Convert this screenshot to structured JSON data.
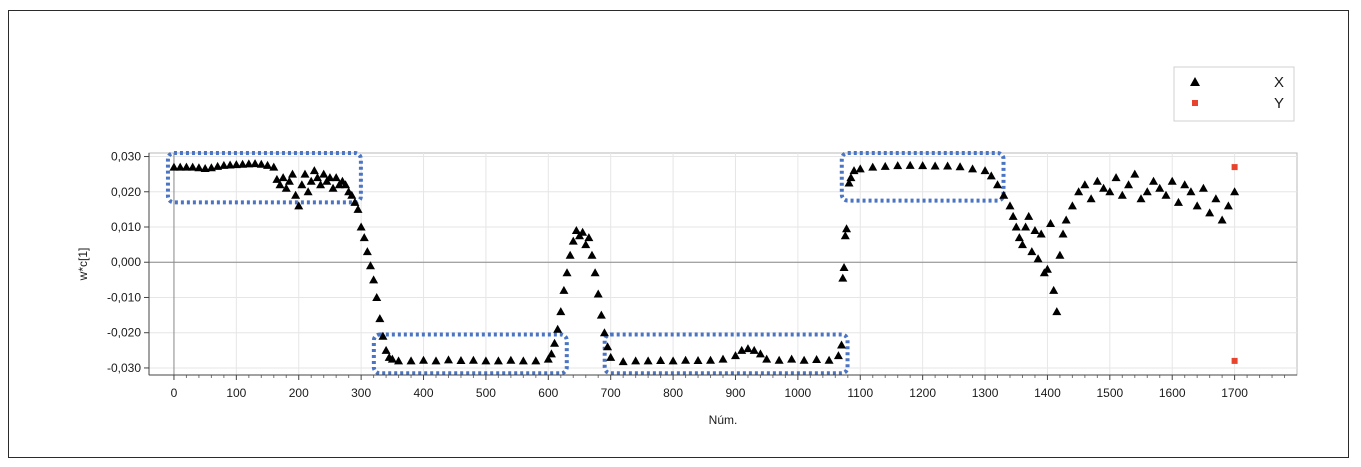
{
  "chart_data": {
    "type": "scatter",
    "xlabel": "Núm.",
    "ylabel": "w*c[1]",
    "xlim": [
      -40,
      1800
    ],
    "ylim": [
      -0.032,
      0.031
    ],
    "x_ticks": [
      "0",
      "100",
      "200",
      "300",
      "400",
      "500",
      "600",
      "700",
      "800",
      "900",
      "1000",
      "1100",
      "1200",
      "1300",
      "1400",
      "1500",
      "1600",
      "1700"
    ],
    "y_ticks": [
      "0,030",
      "0,020",
      "0,010",
      "0,000",
      "-0,010",
      "-0,020",
      "-0,030"
    ],
    "grid": true,
    "legend": {
      "placement": "top-right",
      "entries": [
        {
          "label": "X",
          "marker": "triangle",
          "color": "#000000"
        },
        {
          "label": "Y",
          "marker": "square",
          "color": "#e8432c"
        }
      ]
    },
    "series": [
      {
        "name": "X",
        "marker": "triangle",
        "color": "#000000",
        "points": [
          [
            0,
            0.027
          ],
          [
            10,
            0.027
          ],
          [
            20,
            0.027
          ],
          [
            30,
            0.027
          ],
          [
            40,
            0.0268
          ],
          [
            50,
            0.0266
          ],
          [
            60,
            0.0268
          ],
          [
            70,
            0.0272
          ],
          [
            80,
            0.0275
          ],
          [
            90,
            0.0276
          ],
          [
            100,
            0.0277
          ],
          [
            110,
            0.0278
          ],
          [
            120,
            0.0279
          ],
          [
            130,
            0.028
          ],
          [
            140,
            0.0278
          ],
          [
            150,
            0.0275
          ],
          [
            160,
            0.027
          ],
          [
            165,
            0.0235
          ],
          [
            170,
            0.022
          ],
          [
            175,
            0.024
          ],
          [
            180,
            0.021
          ],
          [
            185,
            0.023
          ],
          [
            190,
            0.025
          ],
          [
            195,
            0.019
          ],
          [
            200,
            0.016
          ],
          [
            205,
            0.022
          ],
          [
            210,
            0.025
          ],
          [
            215,
            0.02
          ],
          [
            220,
            0.023
          ],
          [
            225,
            0.026
          ],
          [
            230,
            0.024
          ],
          [
            235,
            0.022
          ],
          [
            240,
            0.025
          ],
          [
            245,
            0.023
          ],
          [
            250,
            0.024
          ],
          [
            255,
            0.021
          ],
          [
            260,
            0.024
          ],
          [
            265,
            0.022
          ],
          [
            270,
            0.023
          ],
          [
            275,
            0.022
          ],
          [
            280,
            0.02
          ],
          [
            285,
            0.019
          ],
          [
            290,
            0.017
          ],
          [
            295,
            0.015
          ],
          [
            300,
            0.01
          ],
          [
            305,
            0.007
          ],
          [
            310,
            0.003
          ],
          [
            315,
            -0.001
          ],
          [
            320,
            -0.005
          ],
          [
            325,
            -0.01
          ],
          [
            330,
            -0.016
          ],
          [
            335,
            -0.021
          ],
          [
            340,
            -0.025
          ],
          [
            345,
            -0.027
          ],
          [
            350,
            -0.0275
          ],
          [
            360,
            -0.028
          ],
          [
            380,
            -0.028
          ],
          [
            400,
            -0.0278
          ],
          [
            420,
            -0.028
          ],
          [
            440,
            -0.0277
          ],
          [
            460,
            -0.0279
          ],
          [
            480,
            -0.0278
          ],
          [
            500,
            -0.028
          ],
          [
            520,
            -0.028
          ],
          [
            540,
            -0.0278
          ],
          [
            560,
            -0.028
          ],
          [
            580,
            -0.028
          ],
          [
            600,
            -0.0275
          ],
          [
            605,
            -0.026
          ],
          [
            610,
            -0.023
          ],
          [
            615,
            -0.019
          ],
          [
            620,
            -0.014
          ],
          [
            625,
            -0.008
          ],
          [
            630,
            -0.003
          ],
          [
            635,
            0.002
          ],
          [
            640,
            0.006
          ],
          [
            645,
            0.009
          ],
          [
            650,
            0.0075
          ],
          [
            655,
            0.0085
          ],
          [
            660,
            0.005
          ],
          [
            665,
            0.007
          ],
          [
            670,
            0.002
          ],
          [
            675,
            -0.003
          ],
          [
            680,
            -0.009
          ],
          [
            685,
            -0.015
          ],
          [
            690,
            -0.02
          ],
          [
            695,
            -0.024
          ],
          [
            700,
            -0.027
          ],
          [
            720,
            -0.0282
          ],
          [
            740,
            -0.028
          ],
          [
            760,
            -0.028
          ],
          [
            780,
            -0.0279
          ],
          [
            800,
            -0.028
          ],
          [
            820,
            -0.0278
          ],
          [
            840,
            -0.0279
          ],
          [
            860,
            -0.0278
          ],
          [
            880,
            -0.0275
          ],
          [
            900,
            -0.0265
          ],
          [
            910,
            -0.025
          ],
          [
            920,
            -0.0245
          ],
          [
            930,
            -0.025
          ],
          [
            940,
            -0.026
          ],
          [
            950,
            -0.0275
          ],
          [
            970,
            -0.0278
          ],
          [
            990,
            -0.0275
          ],
          [
            1010,
            -0.0278
          ],
          [
            1030,
            -0.0276
          ],
          [
            1050,
            -0.0278
          ],
          [
            1065,
            -0.0265
          ],
          [
            1070,
            -0.0235
          ],
          [
            1072,
            -0.0045
          ],
          [
            1074,
            -0.0015
          ],
          [
            1076,
            0.0075
          ],
          [
            1078,
            0.0095
          ],
          [
            1082,
            0.0225
          ],
          [
            1085,
            0.024
          ],
          [
            1090,
            0.026
          ],
          [
            1100,
            0.0265
          ],
          [
            1120,
            0.027
          ],
          [
            1140,
            0.0272
          ],
          [
            1160,
            0.0274
          ],
          [
            1180,
            0.0275
          ],
          [
            1200,
            0.0274
          ],
          [
            1220,
            0.0273
          ],
          [
            1240,
            0.0273
          ],
          [
            1260,
            0.0271
          ],
          [
            1280,
            0.0265
          ],
          [
            1300,
            0.026
          ],
          [
            1310,
            0.0245
          ],
          [
            1320,
            0.022
          ],
          [
            1330,
            0.019
          ],
          [
            1340,
            0.016
          ],
          [
            1345,
            0.013
          ],
          [
            1350,
            0.01
          ],
          [
            1355,
            0.007
          ],
          [
            1360,
            0.005
          ],
          [
            1365,
            0.01
          ],
          [
            1370,
            0.013
          ],
          [
            1375,
            0.003
          ],
          [
            1380,
            0.009
          ],
          [
            1385,
            0.001
          ],
          [
            1390,
            0.008
          ],
          [
            1395,
            -0.003
          ],
          [
            1400,
            -0.002
          ],
          [
            1405,
            0.011
          ],
          [
            1410,
            -0.008
          ],
          [
            1415,
            -0.014
          ],
          [
            1420,
            0.002
          ],
          [
            1425,
            0.008
          ],
          [
            1430,
            0.012
          ],
          [
            1440,
            0.016
          ],
          [
            1450,
            0.02
          ],
          [
            1460,
            0.022
          ],
          [
            1470,
            0.018
          ],
          [
            1480,
            0.023
          ],
          [
            1490,
            0.021
          ],
          [
            1500,
            0.02
          ],
          [
            1510,
            0.024
          ],
          [
            1520,
            0.019
          ],
          [
            1530,
            0.022
          ],
          [
            1540,
            0.025
          ],
          [
            1550,
            0.018
          ],
          [
            1560,
            0.02
          ],
          [
            1570,
            0.023
          ],
          [
            1580,
            0.021
          ],
          [
            1590,
            0.019
          ],
          [
            1600,
            0.023
          ],
          [
            1610,
            0.017
          ],
          [
            1620,
            0.022
          ],
          [
            1630,
            0.02
          ],
          [
            1640,
            0.016
          ],
          [
            1650,
            0.021
          ],
          [
            1660,
            0.014
          ],
          [
            1670,
            0.018
          ],
          [
            1680,
            0.012
          ],
          [
            1690,
            0.016
          ],
          [
            1700,
            0.02
          ]
        ]
      },
      {
        "name": "Y",
        "marker": "square",
        "color": "#e8432c",
        "points": [
          [
            1700,
            0.027
          ],
          [
            1700,
            -0.028
          ]
        ]
      }
    ],
    "highlight_boxes": [
      {
        "x": [
          0,
          290
        ],
        "y": [
          0.017,
          0.031
        ]
      },
      {
        "x": [
          330,
          620
        ],
        "y": [
          -0.0315,
          -0.0205
        ]
      },
      {
        "x": [
          700,
          1070
        ],
        "y": [
          -0.0315,
          -0.0205
        ]
      },
      {
        "x": [
          1080,
          1320
        ],
        "y": [
          0.0175,
          0.031
        ]
      }
    ]
  }
}
